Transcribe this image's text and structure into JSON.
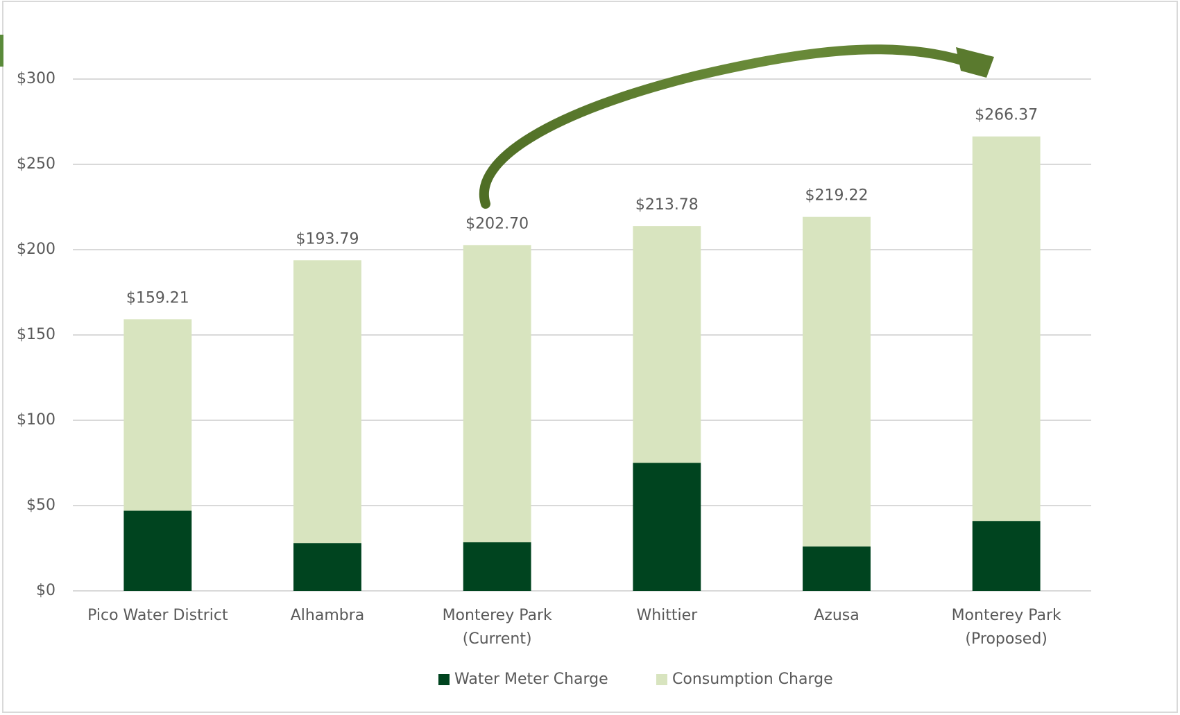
{
  "chart_data": {
    "type": "stacked_bar",
    "categories": [
      "Pico Water District",
      "Alhambra",
      "Monterey Park\n(Current)",
      "Whittier",
      "Azusa",
      "Monterey Park\n(Proposed)"
    ],
    "series": [
      {
        "name": "Water Meter Charge",
        "color": "#00441f",
        "values": [
          47,
          28,
          28.5,
          75,
          26,
          41
        ]
      },
      {
        "name": "Consumption Charge",
        "color": "#d8e4bf",
        "values": [
          112.21,
          165.79,
          174.2,
          138.78,
          193.22,
          225.37
        ]
      }
    ],
    "totals": [
      159.21,
      193.79,
      202.7,
      213.78,
      219.22,
      266.37
    ],
    "total_labels": [
      "$159.21",
      "$193.79",
      "$202.70",
      "$213.78",
      "$219.22",
      "$266.37"
    ],
    "ylim": [
      0,
      300
    ],
    "yticks": [
      {
        "value": 0,
        "label": "$0"
      },
      {
        "value": 50,
        "label": "$50"
      },
      {
        "value": 100,
        "label": "$100"
      },
      {
        "value": 150,
        "label": "$150"
      },
      {
        "value": 200,
        "label": "$200"
      },
      {
        "value": 250,
        "label": "$250"
      },
      {
        "value": 300,
        "label": "$300"
      }
    ],
    "grid": true,
    "legend": "bottom"
  }
}
